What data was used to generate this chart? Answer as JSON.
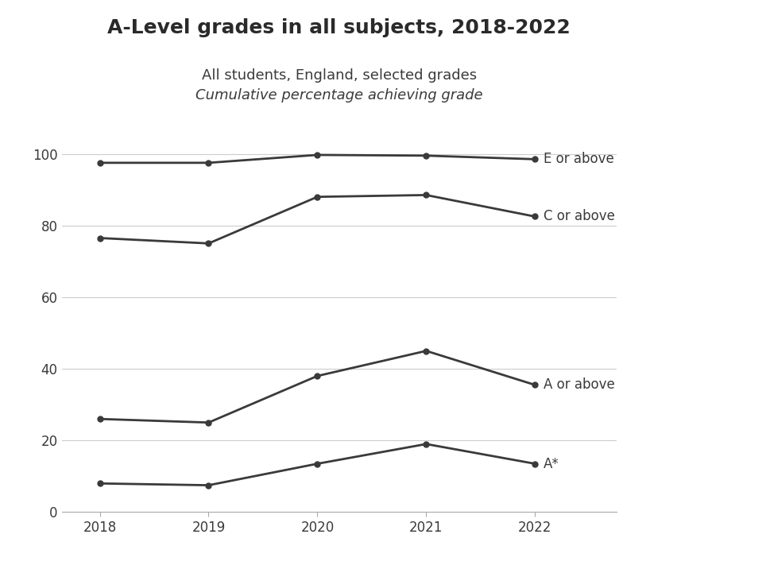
{
  "title": "A-Level grades in all subjects, 2018-2022",
  "subtitle1": "All students, England, selected grades",
  "subtitle2": "Cumulative percentage achieving grade",
  "years": [
    2018,
    2019,
    2020,
    2021,
    2022
  ],
  "series": [
    {
      "label": "E or above",
      "values": [
        97.5,
        97.5,
        99.7,
        99.5,
        98.5
      ]
    },
    {
      "label": "C or above",
      "values": [
        76.5,
        75.0,
        88.0,
        88.5,
        82.5
      ]
    },
    {
      "label": "A or above",
      "values": [
        26.0,
        25.0,
        38.0,
        45.0,
        35.5
      ]
    },
    {
      "label": "A*",
      "values": [
        8.0,
        7.5,
        13.5,
        19.0,
        13.5
      ]
    }
  ],
  "line_color": "#3a3a3a",
  "marker_color": "#3a3a3a",
  "background_color": "#ffffff",
  "grid_color": "#cccccc",
  "ylim": [
    0,
    108
  ],
  "yticks": [
    0,
    20,
    40,
    60,
    80,
    100
  ],
  "xlim": [
    2017.65,
    2022.75
  ],
  "title_fontsize": 18,
  "subtitle1_fontsize": 13,
  "subtitle2_fontsize": 13,
  "label_fontsize": 12,
  "tick_fontsize": 12
}
